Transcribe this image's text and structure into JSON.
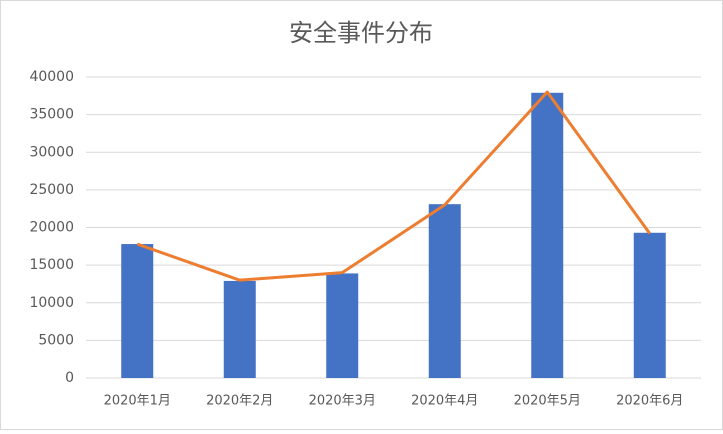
{
  "chart_data": {
    "type": "bar",
    "title": "安全事件分布",
    "categories": [
      "2020年1月",
      "2020年2月",
      "2020年3月",
      "2020年4月",
      "2020年5月",
      "2020年6月"
    ],
    "series": [
      {
        "type": "bar",
        "color": "#4472c4",
        "values": [
          17800,
          12900,
          13900,
          23100,
          37900,
          19300
        ]
      },
      {
        "type": "line",
        "color": "#ed7d31",
        "values": [
          17800,
          13000,
          14000,
          23000,
          38000,
          19200
        ]
      }
    ],
    "ylim": [
      0,
      40000
    ],
    "yticks": [
      0,
      5000,
      10000,
      15000,
      20000,
      25000,
      30000,
      35000,
      40000
    ],
    "grid": true
  }
}
